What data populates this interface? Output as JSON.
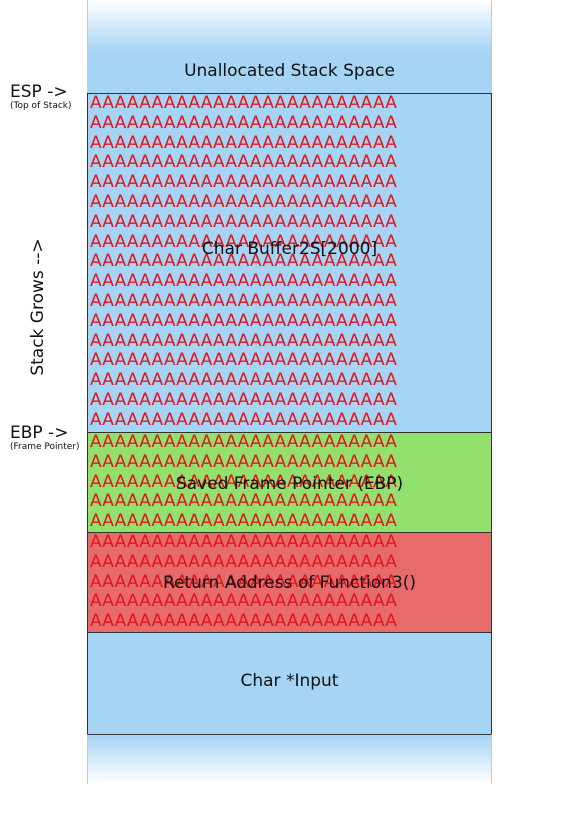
{
  "diagram": {
    "blocks": {
      "unallocated": "Unallocated Stack Space",
      "buffer": "Char Buffer2S[2000]",
      "saved_ebp": "Saved Frame Pointer (EBP)",
      "return_address": "Return Address of Function3()",
      "input": "Char *Input"
    },
    "markers": {
      "esp_label": "ESP ->",
      "esp_sub": "(Top of Stack)",
      "ebp_label": "EBP ->",
      "ebp_sub": "(Frame Pointer)"
    },
    "direction_label": "Stack Grows -->",
    "overflow_row": "AAAAAAAAAAAAAAAAAAAAAAAAA",
    "overflow_rows": {
      "buffer": 17,
      "saved_ebp": 5,
      "return_address": 5
    },
    "colors": {
      "stack_blue": "#a6d4f5",
      "saved_ebp_green": "#92e06e",
      "return_red": "#e76b6b",
      "overflow_text": "#e4141e"
    }
  }
}
